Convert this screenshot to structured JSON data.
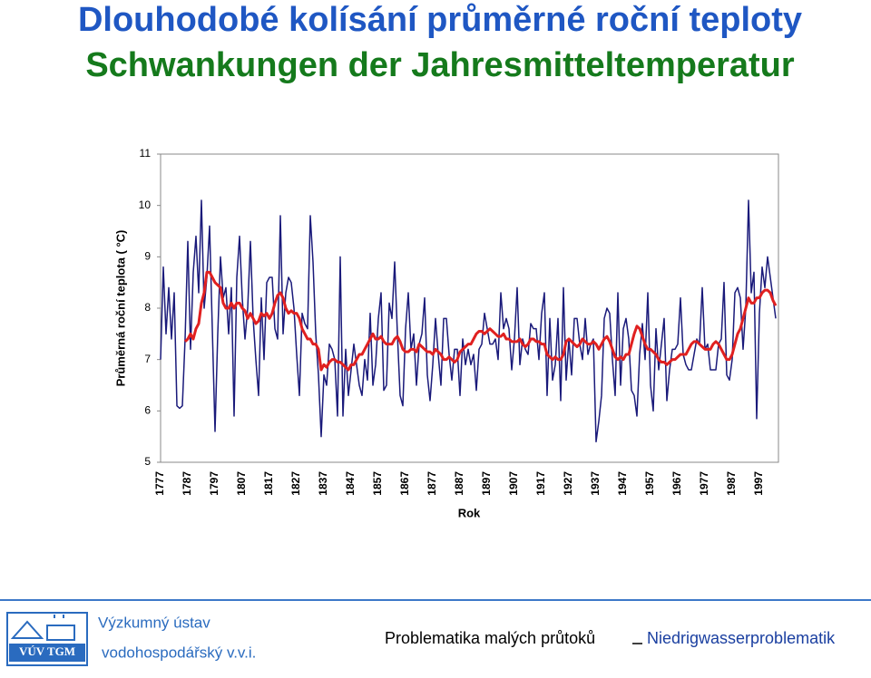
{
  "header": {
    "title": "Dlouhodobé kolísání průměrné roční teploty",
    "subtitle": "Schwankungen der Jahresmitteltemperatur"
  },
  "chart_data": {
    "type": "line",
    "ylabel": "Průměrná roční teplota ( °C)",
    "xlabel": "Rok",
    "x": [
      1777,
      1778,
      1779,
      1780,
      1781,
      1782,
      1783,
      1784,
      1785,
      1786,
      1787,
      1788,
      1789,
      1790,
      1791,
      1792,
      1793,
      1794,
      1795,
      1796,
      1797,
      1798,
      1799,
      1800,
      1801,
      1802,
      1803,
      1804,
      1805,
      1806,
      1807,
      1808,
      1809,
      1810,
      1811,
      1812,
      1813,
      1814,
      1815,
      1816,
      1817,
      1818,
      1819,
      1820,
      1821,
      1822,
      1823,
      1824,
      1825,
      1826,
      1827,
      1828,
      1829,
      1830,
      1831,
      1832,
      1833,
      1834,
      1835,
      1836,
      1837,
      1838,
      1839,
      1840,
      1841,
      1842,
      1843,
      1844,
      1845,
      1846,
      1847,
      1848,
      1849,
      1850,
      1851,
      1852,
      1853,
      1854,
      1855,
      1856,
      1857,
      1858,
      1859,
      1860,
      1861,
      1862,
      1863,
      1864,
      1865,
      1866,
      1867,
      1868,
      1869,
      1870,
      1871,
      1872,
      1873,
      1874,
      1875,
      1876,
      1877,
      1878,
      1879,
      1880,
      1881,
      1882,
      1883,
      1884,
      1885,
      1886,
      1887,
      1888,
      1889,
      1890,
      1891,
      1892,
      1893,
      1894,
      1895,
      1896,
      1897,
      1898,
      1899,
      1900,
      1901,
      1902,
      1903,
      1904,
      1905,
      1906,
      1907,
      1908,
      1909,
      1910,
      1911,
      1912,
      1913,
      1914,
      1915,
      1916,
      1917,
      1918,
      1919,
      1920,
      1921,
      1922,
      1923,
      1924,
      1925,
      1926,
      1927,
      1928,
      1929,
      1930,
      1931,
      1932,
      1933,
      1934,
      1935,
      1936,
      1937,
      1938,
      1939,
      1940,
      1941,
      1942,
      1943,
      1944,
      1945,
      1946,
      1947,
      1948,
      1949,
      1950,
      1951,
      1952,
      1953,
      1954,
      1955,
      1956,
      1957,
      1958,
      1959,
      1960,
      1961,
      1962,
      1963,
      1964,
      1965,
      1966,
      1967,
      1968,
      1969,
      1970,
      1971,
      1972,
      1973,
      1974,
      1975,
      1976,
      1977,
      1978,
      1979,
      1980,
      1981,
      1982,
      1983,
      1984,
      1985,
      1986,
      1987,
      1988,
      1989,
      1990,
      1991,
      1992,
      1993,
      1994,
      1995,
      1996,
      1997,
      1998,
      1999,
      2000,
      2001,
      2002,
      2003
    ],
    "series": [
      {
        "color": "#1a1a7a",
        "values": [
          7.0,
          8.8,
          7.5,
          8.4,
          7.4,
          8.3,
          6.1,
          6.05,
          6.1,
          7.4,
          9.3,
          7.2,
          8.7,
          9.4,
          8.3,
          10.1,
          8.0,
          8.6,
          9.6,
          7.6,
          5.6,
          7.5,
          9.0,
          8.2,
          8.4,
          7.5,
          8.4,
          5.9,
          8.6,
          9.4,
          8.2,
          7.4,
          8.0,
          9.3,
          7.8,
          7.0,
          6.3,
          8.2,
          7.0,
          8.5,
          8.6,
          8.6,
          7.6,
          7.4,
          9.8,
          7.5,
          8.3,
          8.6,
          8.5,
          8.0,
          7.1,
          6.3,
          7.9,
          7.7,
          7.6,
          9.8,
          8.9,
          7.5,
          6.7,
          5.5,
          6.7,
          6.5,
          7.3,
          7.2,
          7.0,
          5.9,
          9.0,
          5.9,
          7.2,
          6.3,
          6.8,
          7.3,
          6.9,
          6.5,
          6.3,
          7.0,
          6.6,
          7.9,
          6.5,
          6.9,
          7.8,
          8.3,
          6.4,
          6.5,
          8.1,
          7.8,
          8.9,
          7.5,
          6.3,
          6.1,
          7.6,
          8.3,
          7.2,
          7.5,
          6.5,
          7.3,
          7.5,
          8.2,
          6.7,
          6.2,
          6.9,
          7.8,
          7.1,
          6.5,
          7.8,
          7.8,
          7.1,
          6.6,
          7.2,
          7.2,
          6.3,
          7.4,
          6.9,
          7.2,
          6.9,
          7.1,
          6.4,
          7.2,
          7.3,
          7.9,
          7.6,
          7.3,
          7.3,
          7.4,
          7.0,
          8.3,
          7.6,
          7.8,
          7.6,
          6.8,
          7.4,
          8.4,
          6.9,
          7.4,
          7.2,
          7.1,
          7.7,
          7.6,
          7.6,
          7.0,
          7.9,
          8.3,
          6.3,
          7.8,
          6.6,
          6.9,
          7.8,
          6.2,
          8.4,
          6.6,
          7.4,
          6.7,
          7.8,
          7.8,
          7.3,
          7.0,
          7.8,
          7.1,
          7.3,
          7.4,
          5.4,
          5.8,
          6.3,
          7.8,
          8.0,
          7.9,
          7.0,
          6.3,
          8.3,
          6.5,
          7.6,
          7.8,
          7.4,
          6.4,
          6.3,
          5.9,
          7.1,
          7.7,
          7.0,
          8.3,
          6.5,
          6.0,
          7.6,
          6.8,
          7.3,
          7.8,
          6.2,
          6.8,
          7.2,
          7.2,
          7.3,
          8.2,
          7.1,
          6.9,
          6.8,
          6.8,
          7.1,
          7.4,
          7.3,
          8.4,
          7.2,
          7.3,
          6.8,
          6.8,
          6.8,
          7.3,
          7.4,
          8.5,
          6.7,
          6.6,
          7.0,
          8.3,
          8.4,
          8.2,
          7.2,
          8.0,
          10.1,
          8.3,
          8.7,
          5.85,
          7.9,
          8.8,
          8.4,
          9.0,
          8.6,
          8.2,
          7.8
        ]
      },
      {
        "color": "#e02020",
        "values": [
          null,
          null,
          null,
          null,
          null,
          null,
          null,
          null,
          null,
          7.35,
          7.4,
          7.5,
          7.4,
          7.6,
          7.7,
          8.1,
          8.3,
          8.7,
          8.7,
          8.6,
          8.5,
          8.45,
          8.4,
          8.1,
          8.0,
          8.0,
          8.1,
          8.0,
          8.1,
          8.1,
          8.0,
          7.95,
          7.8,
          7.9,
          7.8,
          7.7,
          7.75,
          7.9,
          7.85,
          7.9,
          7.8,
          7.9,
          8.1,
          8.25,
          8.3,
          8.2,
          8.0,
          7.9,
          7.95,
          7.9,
          7.9,
          7.8,
          7.6,
          7.5,
          7.4,
          7.4,
          7.3,
          7.3,
          7.2,
          6.8,
          6.9,
          6.85,
          6.95,
          7.0,
          7.0,
          6.95,
          6.95,
          6.9,
          6.85,
          6.8,
          6.9,
          6.9,
          7.0,
          7.1,
          7.1,
          7.2,
          7.3,
          7.4,
          7.5,
          7.4,
          7.4,
          7.45,
          7.35,
          7.3,
          7.3,
          7.3,
          7.4,
          7.45,
          7.35,
          7.2,
          7.15,
          7.15,
          7.2,
          7.2,
          7.15,
          7.3,
          7.25,
          7.2,
          7.15,
          7.15,
          7.1,
          7.2,
          7.15,
          7.1,
          7.0,
          7.0,
          7.05,
          7.0,
          6.95,
          7.0,
          7.15,
          7.2,
          7.25,
          7.3,
          7.3,
          7.4,
          7.5,
          7.55,
          7.55,
          7.5,
          7.55,
          7.6,
          7.55,
          7.5,
          7.45,
          7.45,
          7.5,
          7.4,
          7.4,
          7.35,
          7.35,
          7.35,
          7.4,
          7.3,
          7.25,
          7.3,
          7.4,
          7.4,
          7.35,
          7.35,
          7.3,
          7.3,
          7.1,
          7.05,
          7.0,
          7.05,
          7.0,
          7.0,
          7.1,
          7.35,
          7.4,
          7.35,
          7.3,
          7.25,
          7.3,
          7.4,
          7.35,
          7.3,
          7.3,
          7.35,
          7.3,
          7.2,
          7.3,
          7.4,
          7.45,
          7.35,
          7.2,
          7.05,
          7.0,
          7.05,
          7.0,
          7.1,
          7.1,
          7.3,
          7.5,
          7.65,
          7.6,
          7.45,
          7.3,
          7.2,
          7.2,
          7.15,
          7.1,
          7.0,
          6.95,
          6.95,
          6.9,
          6.95,
          7.0,
          7.0,
          7.05,
          7.1,
          7.1,
          7.1,
          7.2,
          7.3,
          7.35,
          7.35,
          7.3,
          7.25,
          7.2,
          7.2,
          7.2,
          7.3,
          7.35,
          7.3,
          7.2,
          7.1,
          7.0,
          7.0,
          7.1,
          7.3,
          7.5,
          7.6,
          7.8,
          8.0,
          8.2,
          8.1,
          8.1,
          8.2,
          8.2,
          8.3,
          8.35,
          8.35,
          8.3,
          8.15,
          8.05
        ]
      }
    ],
    "xlim": [
      1777,
      2004
    ],
    "xticks": [
      1777,
      1787,
      1797,
      1807,
      1817,
      1827,
      1837,
      1847,
      1857,
      1867,
      1877,
      1887,
      1897,
      1907,
      1917,
      1927,
      1937,
      1947,
      1957,
      1967,
      1977,
      1987,
      1997
    ],
    "ylim": [
      5,
      11
    ],
    "yticks": [
      5,
      6,
      7,
      8,
      9,
      10,
      11
    ],
    "grid": false
  },
  "footer": {
    "institute_line1": "Výzkumný ústav",
    "institute_line2": "vodohospodářský v.v.i.",
    "logo": "VÚV TGM",
    "topic_cz": "Problematika malých průtoků",
    "topic_de": "Niedrigwasserproblematik"
  }
}
